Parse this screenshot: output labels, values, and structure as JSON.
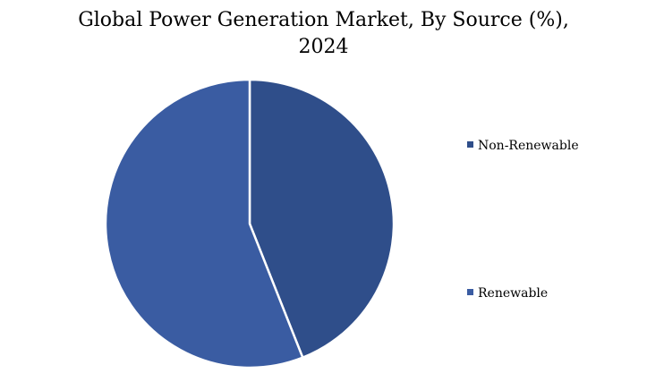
{
  "chart_data": {
    "type": "pie",
    "title_line1": "Global Power Generation Market, By Source (%),",
    "title_line2": "2024",
    "categories": [
      "Non-Renewable",
      "Renewable"
    ],
    "values": [
      44,
      56
    ],
    "colors": [
      "#2f4e8a",
      "#3a5ca2"
    ],
    "legend_position": "right",
    "start_angle": "12 o'clock",
    "direction": "clockwise"
  }
}
